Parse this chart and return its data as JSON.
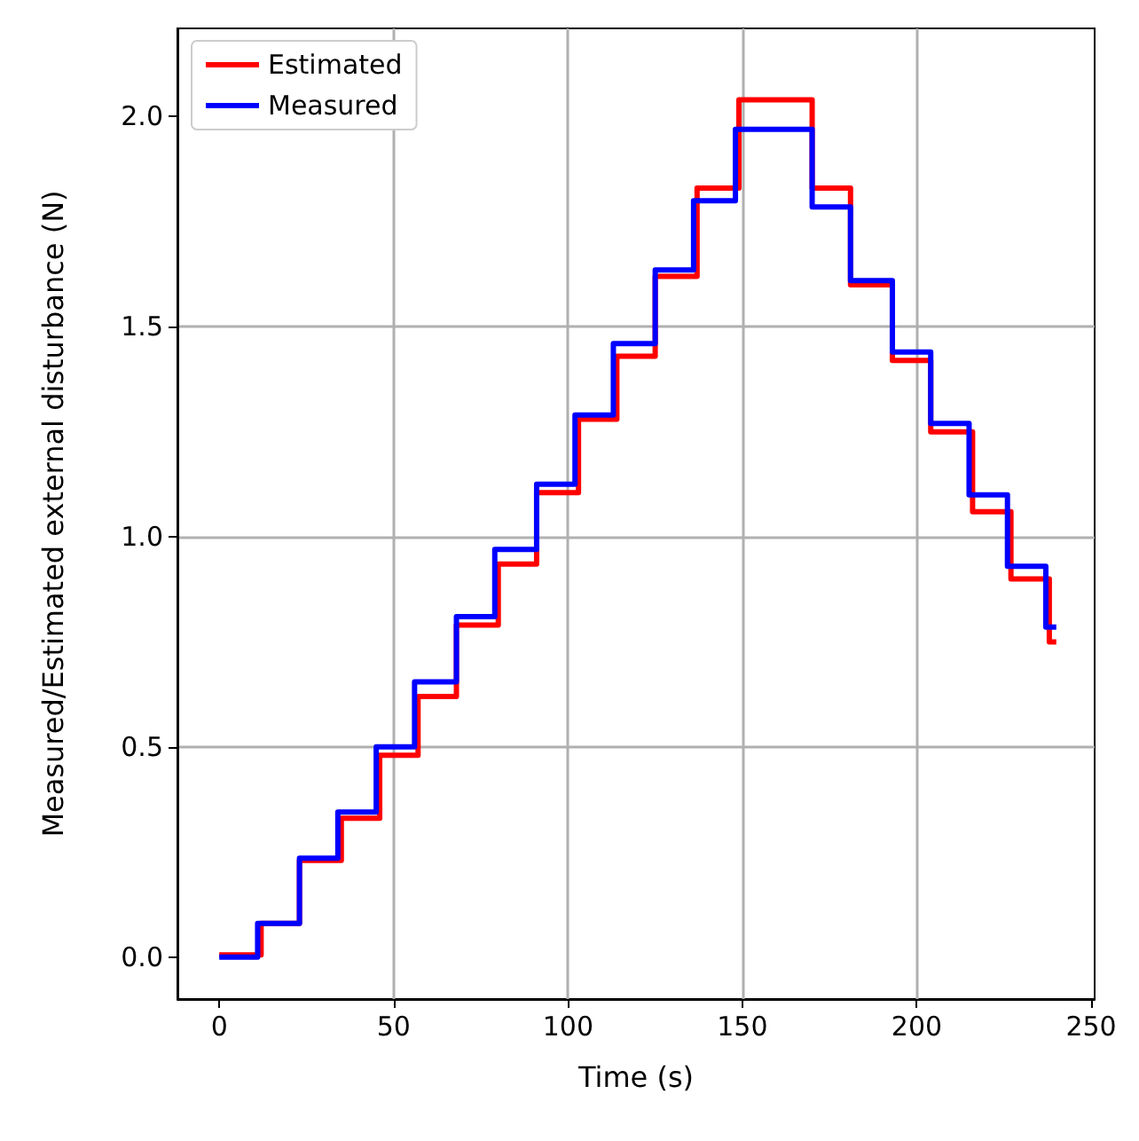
{
  "chart_data": {
    "type": "step",
    "xlabel": "Time (s)",
    "ylabel": "Measured/Estimated external disturbance (N)",
    "xlim": [
      -12,
      251
    ],
    "xticks": [
      0,
      50,
      100,
      150,
      200,
      250
    ],
    "ylim": [
      -0.1,
      2.21
    ],
    "yticks": [
      {
        "value": 0,
        "label": "0.0"
      },
      0.5,
      {
        "value": 1,
        "label": "1.0"
      },
      1.5,
      {
        "value": 2,
        "label": "2.0"
      }
    ],
    "grid": true,
    "legend": "top left",
    "marker": "none",
    "line_style": "solid",
    "series": [
      {
        "name": "Estimated",
        "color": "#ff0000",
        "x": [
          0,
          12,
          23,
          35,
          46,
          57,
          68,
          80,
          91,
          103,
          114,
          125,
          137,
          149,
          170,
          181,
          193,
          204,
          216,
          227,
          238,
          240
        ],
        "values": [
          0.005,
          0.08,
          0.23,
          0.33,
          0.48,
          0.62,
          0.79,
          0.935,
          1.105,
          1.28,
          1.43,
          1.62,
          1.83,
          2.04,
          1.83,
          1.6,
          1.42,
          1.25,
          1.06,
          0.9,
          0.75,
          0.75
        ]
      },
      {
        "name": "Measured",
        "color": "#0000ff",
        "x": [
          0,
          11,
          23,
          34,
          45,
          56,
          68,
          79,
          91,
          102,
          113,
          125,
          136,
          148,
          170,
          181,
          193,
          204,
          215,
          226,
          237,
          240
        ],
        "values": [
          0,
          0.08,
          0.235,
          0.345,
          0.5,
          0.655,
          0.81,
          0.97,
          1.125,
          1.29,
          1.46,
          1.635,
          1.8,
          1.97,
          1.785,
          1.61,
          1.44,
          1.27,
          1.1,
          0.93,
          0.785,
          0.785
        ]
      }
    ]
  }
}
